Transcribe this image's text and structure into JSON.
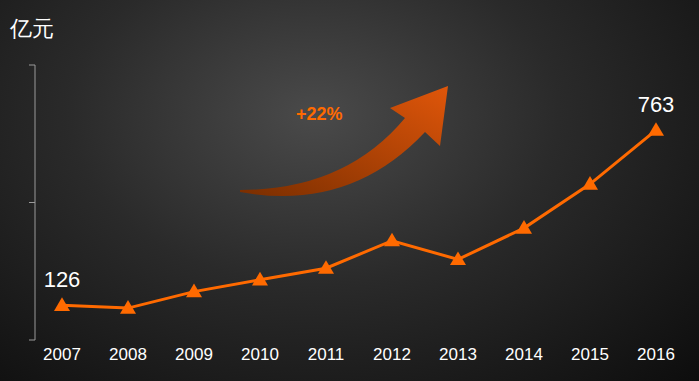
{
  "chart_data": {
    "type": "line",
    "y_label": "亿元",
    "annotation": "+22%",
    "categories": [
      "2007",
      "2008",
      "2009",
      "2010",
      "2011",
      "2012",
      "2013",
      "2014",
      "2015",
      "2016"
    ],
    "values": [
      126,
      116,
      176,
      219,
      261,
      361,
      293,
      407,
      567,
      763
    ],
    "value_labels": [
      "126",
      null,
      null,
      null,
      null,
      null,
      null,
      null,
      null,
      "763"
    ],
    "data_labels": true,
    "color": "#ff6a00",
    "marker": "triangle",
    "line_style": "solid",
    "ylim": [
      0,
      1000
    ],
    "yticks": [
      0,
      500,
      1000
    ],
    "tick_labels": "x",
    "grid": false
  }
}
